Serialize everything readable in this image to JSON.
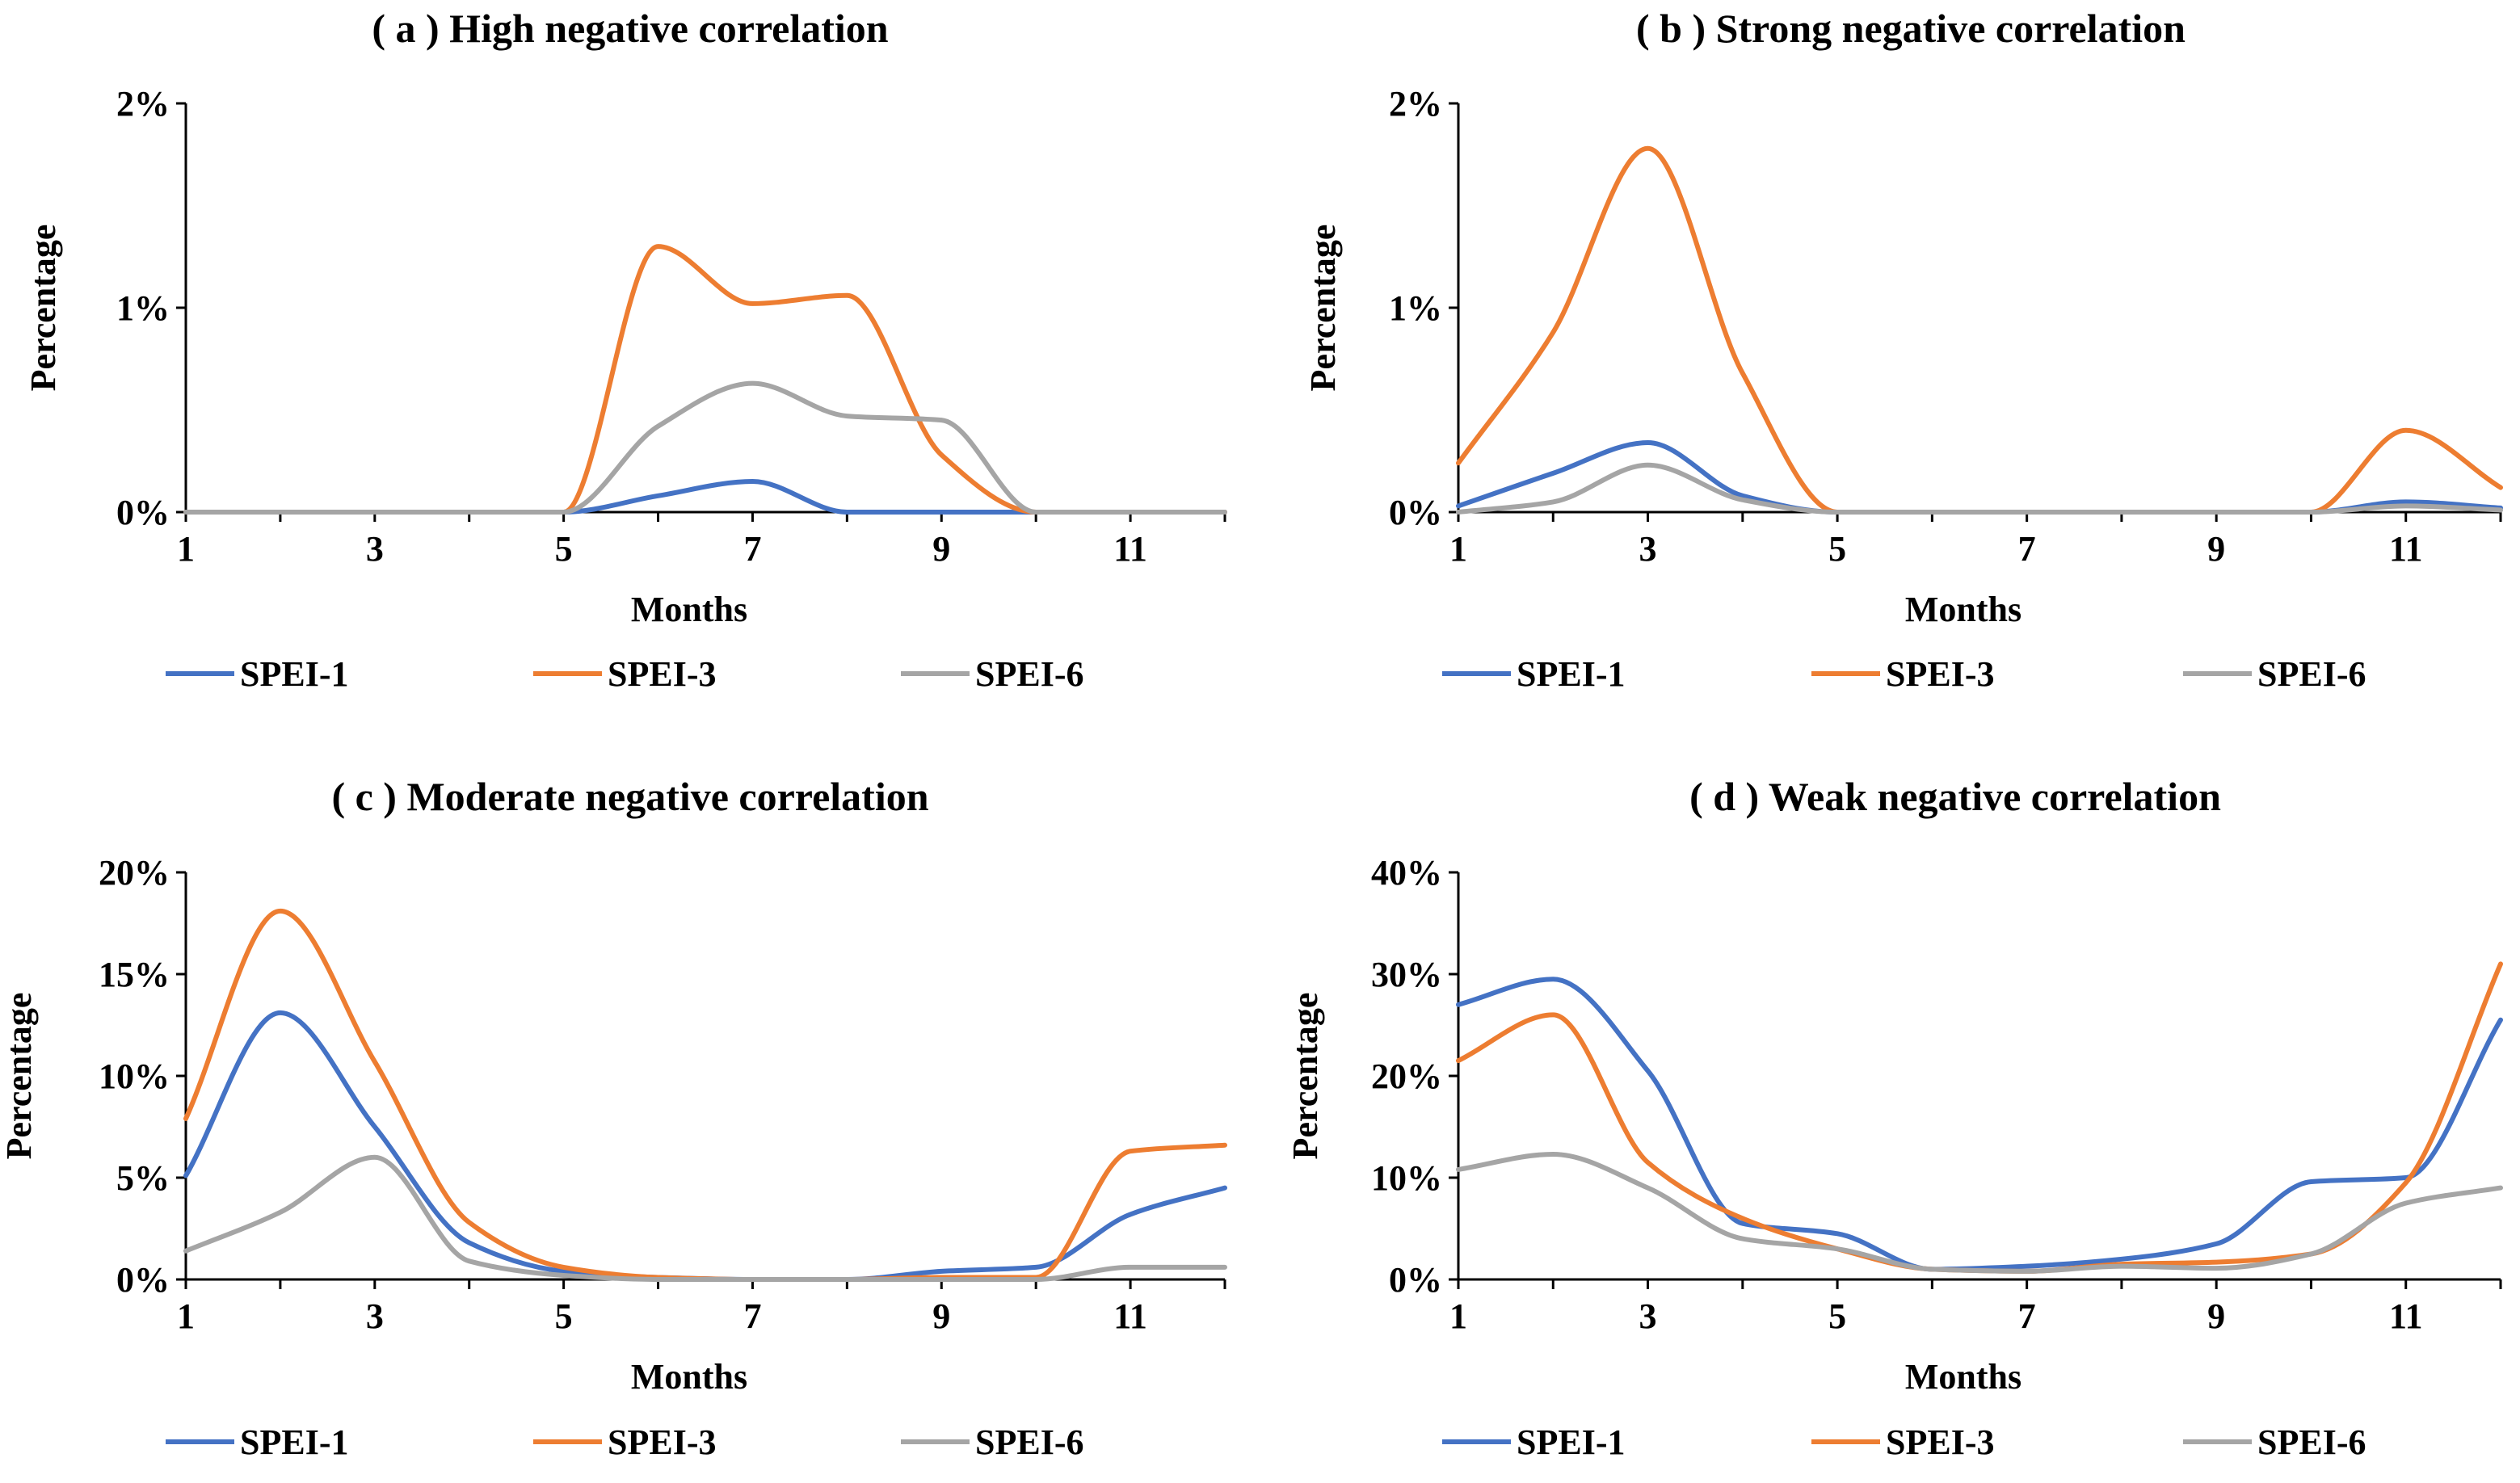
{
  "chart_data": [
    {
      "type": "line",
      "title": "( a ) High negative correlation",
      "xlabel": "Months",
      "ylabel": "Percentage",
      "x": [
        1,
        2,
        3,
        4,
        5,
        6,
        7,
        8,
        9,
        10,
        11,
        12
      ],
      "xticks": [
        1,
        3,
        5,
        7,
        9,
        11
      ],
      "yticks": [
        0,
        1,
        2
      ],
      "ytick_labels": [
        "0%",
        "1%",
        "2%"
      ],
      "ylim": [
        0,
        2
      ],
      "legend_position": "bottom",
      "series": [
        {
          "name": "SPEI-1",
          "color": "#4472C4",
          "values": [
            0,
            0,
            0,
            0,
            0,
            0.08,
            0.15,
            0,
            0,
            0,
            0,
            0
          ]
        },
        {
          "name": "SPEI-3",
          "color": "#ED7D31",
          "values": [
            0,
            0,
            0,
            0,
            0,
            1.3,
            1.02,
            1.06,
            0.28,
            0,
            0,
            0
          ]
        },
        {
          "name": "SPEI-6",
          "color": "#A5A5A5",
          "values": [
            0,
            0,
            0,
            0,
            0,
            0.42,
            0.63,
            0.47,
            0.45,
            0,
            0,
            0
          ]
        }
      ]
    },
    {
      "type": "line",
      "title": "( b ) Strong negative correlation",
      "xlabel": "Months",
      "ylabel": "Percentage",
      "x": [
        1,
        2,
        3,
        4,
        5,
        6,
        7,
        8,
        9,
        10,
        11,
        12
      ],
      "xticks": [
        1,
        3,
        5,
        7,
        9,
        11
      ],
      "yticks": [
        0,
        1,
        2
      ],
      "ytick_labels": [
        "0%",
        "1%",
        "2%"
      ],
      "ylim": [
        0,
        2
      ],
      "legend_position": "bottom",
      "series": [
        {
          "name": "SPEI-1",
          "color": "#4472C4",
          "values": [
            0.03,
            0.19,
            0.34,
            0.08,
            0,
            0,
            0,
            0,
            0,
            0,
            0.05,
            0.02
          ]
        },
        {
          "name": "SPEI-3",
          "color": "#ED7D31",
          "values": [
            0.24,
            0.88,
            1.78,
            0.68,
            0,
            0,
            0,
            0,
            0,
            0,
            0.4,
            0.12
          ]
        },
        {
          "name": "SPEI-6",
          "color": "#A5A5A5",
          "values": [
            0,
            0.05,
            0.23,
            0.06,
            0,
            0,
            0,
            0,
            0,
            0,
            0.03,
            0.01
          ]
        }
      ]
    },
    {
      "type": "line",
      "title": "( c ) Moderate negative correlation",
      "xlabel": "Months",
      "ylabel": "Percentage",
      "x": [
        1,
        2,
        3,
        4,
        5,
        6,
        7,
        8,
        9,
        10,
        11,
        12
      ],
      "xticks": [
        1,
        3,
        5,
        7,
        9,
        11
      ],
      "yticks": [
        0,
        5,
        10,
        15,
        20
      ],
      "ytick_labels": [
        "0%",
        "5%",
        "10%",
        "15%",
        "20%"
      ],
      "ylim": [
        0,
        20
      ],
      "legend_position": "bottom",
      "series": [
        {
          "name": "SPEI-1",
          "color": "#4472C4",
          "values": [
            5.1,
            13.1,
            7.5,
            1.8,
            0.4,
            0.1,
            0,
            0,
            0.4,
            0.6,
            3.2,
            4.5
          ]
        },
        {
          "name": "SPEI-3",
          "color": "#ED7D31",
          "values": [
            7.9,
            18.1,
            10.7,
            2.8,
            0.6,
            0.1,
            0,
            0,
            0.1,
            0.1,
            6.3,
            6.6
          ]
        },
        {
          "name": "SPEI-6",
          "color": "#A5A5A5",
          "values": [
            1.4,
            3.3,
            6,
            0.9,
            0.2,
            0,
            0,
            0,
            0,
            0,
            0.6,
            0.6
          ]
        }
      ]
    },
    {
      "type": "line",
      "title": "( d ) Weak negative correlation",
      "xlabel": "Months",
      "ylabel": "Percentage",
      "x": [
        1,
        2,
        3,
        4,
        5,
        6,
        7,
        8,
        9,
        10,
        11,
        12
      ],
      "xticks": [
        1,
        3,
        5,
        7,
        9,
        11
      ],
      "yticks": [
        0,
        10,
        20,
        30,
        40
      ],
      "ytick_labels": [
        "0%",
        "10%",
        "20%",
        "30%",
        "40%"
      ],
      "ylim": [
        0,
        40
      ],
      "legend_position": "bottom",
      "series": [
        {
          "name": "SPEI-1",
          "color": "#4472C4",
          "values": [
            27,
            29.5,
            20.5,
            5.5,
            4.5,
            1,
            1.3,
            2,
            3.5,
            9.6,
            10,
            25.5
          ]
        },
        {
          "name": "SPEI-3",
          "color": "#ED7D31",
          "values": [
            21.5,
            26,
            11.5,
            6,
            3,
            1,
            0.8,
            1.5,
            1.7,
            2.5,
            9.5,
            31
          ]
        },
        {
          "name": "SPEI-6",
          "color": "#A5A5A5",
          "values": [
            10.8,
            12.3,
            9,
            4,
            3,
            1,
            0.8,
            1.3,
            1.1,
            2.5,
            7.5,
            9
          ]
        }
      ]
    }
  ]
}
